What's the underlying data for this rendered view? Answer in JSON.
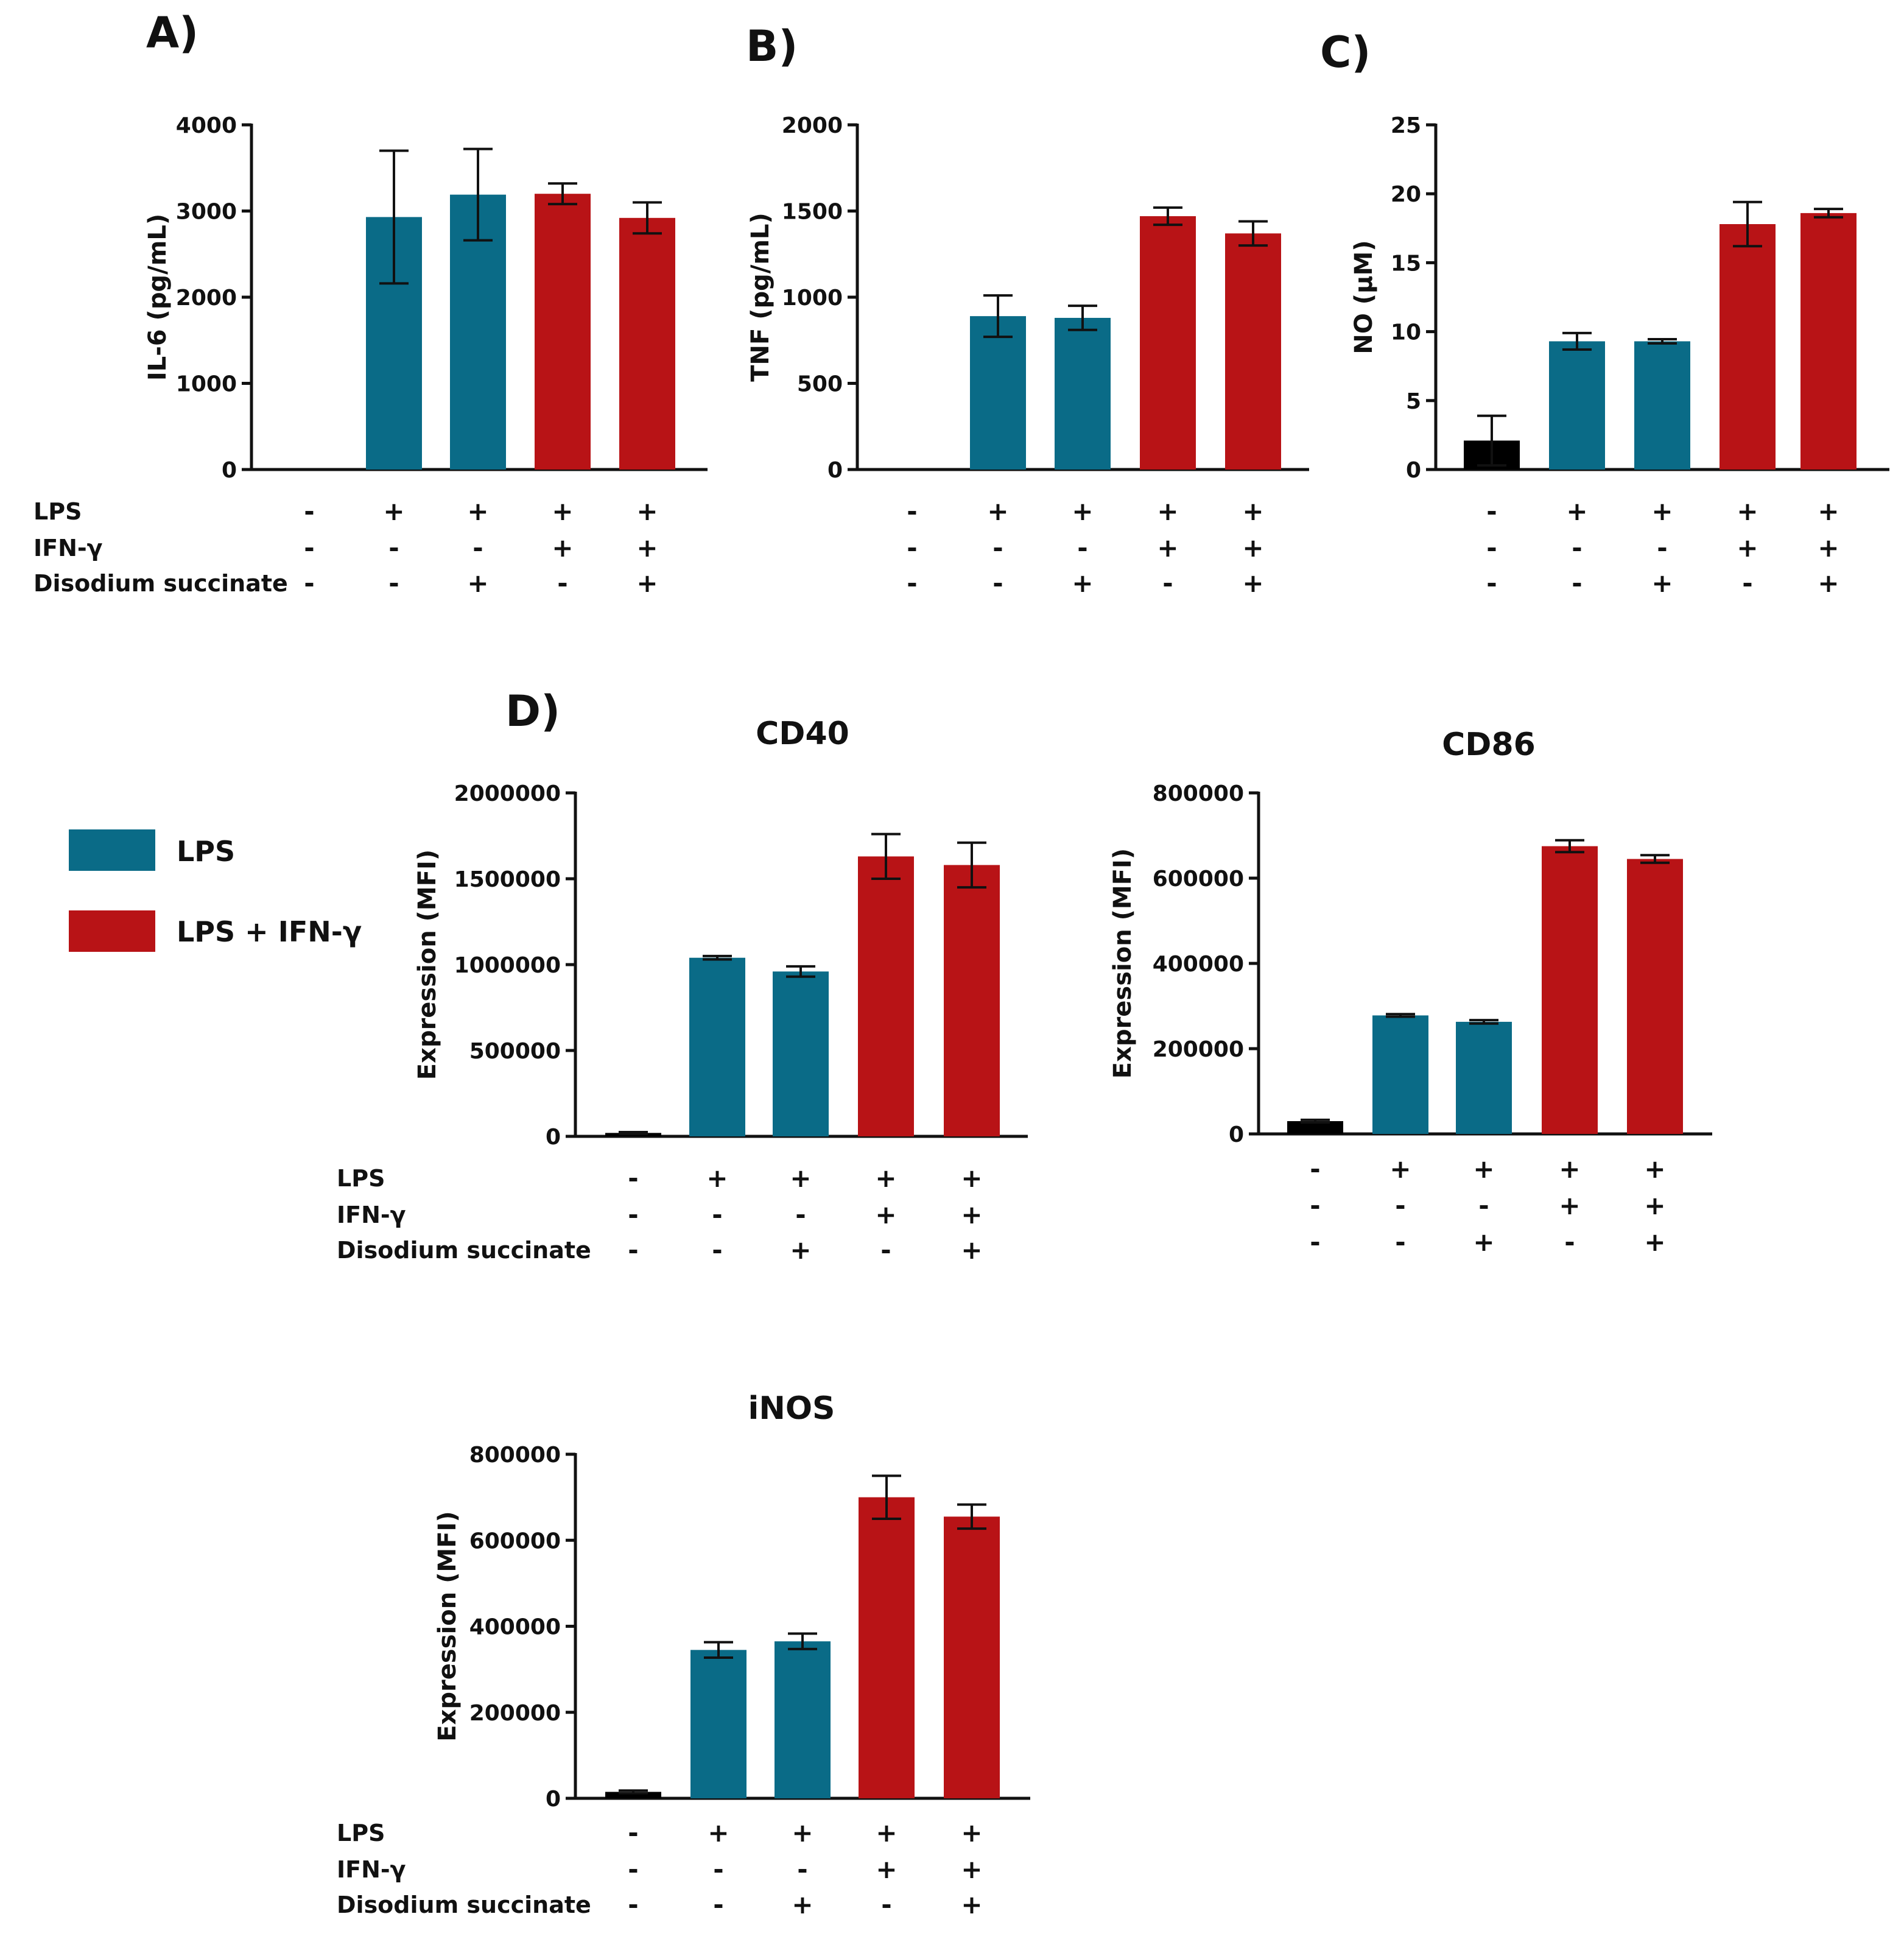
{
  "colors": {
    "control": "#000000",
    "lps": "#0a6b87",
    "lps_ifn": "#b81316",
    "axis": "#111111"
  },
  "legend": [
    {
      "label": "LPS",
      "color_key": "lps"
    },
    {
      "label": "LPS + IFN-γ",
      "color_key": "lps_ifn"
    }
  ],
  "row_labels": [
    "LPS",
    "IFN-γ",
    "Disodium succinate"
  ],
  "conditions": [
    [
      "-",
      "+",
      "+",
      "+",
      "+"
    ],
    [
      "-",
      "-",
      "-",
      "+",
      "+"
    ],
    [
      "-",
      "-",
      "+",
      "-",
      "+"
    ]
  ],
  "bar_colors": [
    "control",
    "lps",
    "lps",
    "lps_ifn",
    "lps_ifn"
  ],
  "chart_data": [
    {
      "id": "il6",
      "type": "bar",
      "panel": "A)",
      "title": "",
      "ylabel": "IL-6 (pg/mL)",
      "ylim": [
        0,
        4000
      ],
      "yticks": [
        "0",
        "1000",
        "2000",
        "3000",
        "4000"
      ],
      "values": [
        0,
        2930,
        3190,
        3200,
        2920
      ],
      "errors": [
        0,
        770,
        530,
        120,
        180
      ],
      "show_row_labels": true
    },
    {
      "id": "tnf",
      "type": "bar",
      "panel": "B)",
      "title": "",
      "ylabel": "TNF (pg/mL)",
      "ylim": [
        0,
        2000
      ],
      "yticks": [
        "0",
        "500",
        "1000",
        "1500",
        "2000"
      ],
      "values": [
        0,
        890,
        880,
        1470,
        1370
      ],
      "errors": [
        0,
        120,
        70,
        50,
        70
      ],
      "show_row_labels": false
    },
    {
      "id": "no",
      "type": "bar",
      "panel": "C)",
      "title": "",
      "ylabel": "NO (µM)",
      "ylim": [
        0,
        25
      ],
      "yticks": [
        "0",
        "5",
        "10",
        "15",
        "20",
        "25"
      ],
      "values": [
        2.1,
        9.3,
        9.3,
        17.8,
        18.6
      ],
      "errors": [
        1.8,
        0.6,
        0.15,
        1.6,
        0.3
      ],
      "show_row_labels": false
    },
    {
      "id": "cd40",
      "type": "bar",
      "panel": "D)",
      "title": "CD40",
      "ylabel": "Expression (MFI)",
      "ylim": [
        0,
        2000000
      ],
      "yticks": [
        "0",
        "500000",
        "1000000",
        "1500000",
        "2000000"
      ],
      "values": [
        20000,
        1040000,
        960000,
        1630000,
        1580000
      ],
      "errors": [
        5000,
        10000,
        30000,
        130000,
        130000
      ],
      "show_row_labels": true
    },
    {
      "id": "cd86",
      "type": "bar",
      "panel": "",
      "title": "CD86",
      "ylabel": "Expression (MFI)",
      "ylim": [
        0,
        800000
      ],
      "yticks": [
        "0",
        "200000",
        "400000",
        "600000",
        "800000"
      ],
      "values": [
        30000,
        278000,
        263000,
        675000,
        645000
      ],
      "errors": [
        3000,
        3000,
        4000,
        14000,
        9000
      ],
      "show_row_labels": false
    },
    {
      "id": "inos",
      "type": "bar",
      "panel": "",
      "title": "iNOS",
      "ylabel": "Expression (MFI)",
      "ylim": [
        0,
        800000
      ],
      "yticks": [
        "0",
        "200000",
        "400000",
        "600000",
        "800000"
      ],
      "values": [
        15000,
        345000,
        365000,
        700000,
        655000
      ],
      "errors": [
        3000,
        18000,
        18000,
        50000,
        28000
      ],
      "show_row_labels": true
    }
  ]
}
